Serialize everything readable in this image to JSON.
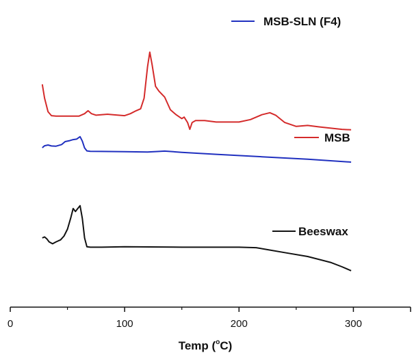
{
  "chart_data": {
    "type": "line",
    "title": "",
    "xlabel": "Temp",
    "xlabel_unit_sup": "o",
    "xlabel_unit": "C",
    "xlim": [
      0,
      350
    ],
    "xticks": [
      0,
      100,
      200,
      300
    ],
    "grid": false,
    "y_axis_shown": false,
    "series": [
      {
        "name": "MSB-SLN (F4)",
        "color": "#1f2fbf",
        "x": [
          28,
          30,
          33,
          36,
          40,
          45,
          48,
          52,
          55,
          58,
          61,
          63,
          65,
          67,
          70,
          80,
          100,
          120,
          130,
          135,
          150,
          180,
          220,
          260,
          298
        ],
        "y": [
          -0.28,
          -0.08,
          0.0,
          -0.1,
          -0.12,
          0.05,
          0.35,
          0.45,
          0.55,
          0.6,
          0.85,
          0.4,
          -0.3,
          -0.6,
          -0.65,
          -0.66,
          -0.68,
          -0.72,
          -0.66,
          -0.62,
          -0.75,
          -0.95,
          -1.2,
          -1.45,
          -1.75
        ]
      },
      {
        "name": "MSB",
        "color": "#d42a2a",
        "x": [
          28,
          30,
          33,
          36,
          40,
          50,
          60,
          65,
          68,
          71,
          75,
          85,
          90,
          100,
          105,
          110,
          114,
          117,
          120,
          122,
          124,
          127,
          130,
          135,
          140,
          145,
          150,
          152,
          155,
          157,
          159,
          162,
          170,
          180,
          200,
          210,
          220,
          227,
          232,
          240,
          250,
          260,
          270,
          290,
          298
        ],
        "y": [
          6.2,
          4.8,
          3.4,
          3.0,
          2.95,
          2.95,
          2.95,
          3.2,
          3.5,
          3.2,
          3.05,
          3.15,
          3.1,
          3.0,
          3.2,
          3.5,
          3.7,
          4.8,
          8.0,
          9.5,
          8.2,
          6.0,
          5.5,
          4.9,
          3.6,
          3.1,
          2.7,
          2.85,
          2.3,
          1.6,
          2.3,
          2.5,
          2.5,
          2.35,
          2.35,
          2.6,
          3.1,
          3.3,
          3.05,
          2.3,
          1.9,
          2.0,
          1.85,
          1.6,
          1.55
        ]
      },
      {
        "name": "Beeswax",
        "color": "#111111",
        "x": [
          28,
          30,
          32,
          34,
          37,
          40,
          42,
          44,
          47,
          50,
          53,
          55,
          57,
          59,
          61,
          63,
          65,
          67,
          70,
          80,
          100,
          150,
          200,
          215,
          225,
          240,
          260,
          280,
          290,
          298
        ],
        "y": [
          -9.5,
          -9.4,
          -9.6,
          -9.9,
          -10.1,
          -9.9,
          -9.8,
          -9.7,
          -9.3,
          -8.6,
          -7.4,
          -6.5,
          -6.8,
          -6.5,
          -6.2,
          -7.5,
          -9.5,
          -10.4,
          -10.45,
          -10.45,
          -10.4,
          -10.45,
          -10.45,
          -10.5,
          -10.7,
          -11.0,
          -11.4,
          -12.0,
          -12.45,
          -12.85
        ]
      }
    ],
    "legend": [
      {
        "label": "MSB-SLN (F4)",
        "color": "#1f2fbf"
      },
      {
        "label": "MSB",
        "color": "#d42a2a"
      },
      {
        "label": "Beeswax",
        "color": "#111111"
      }
    ]
  }
}
